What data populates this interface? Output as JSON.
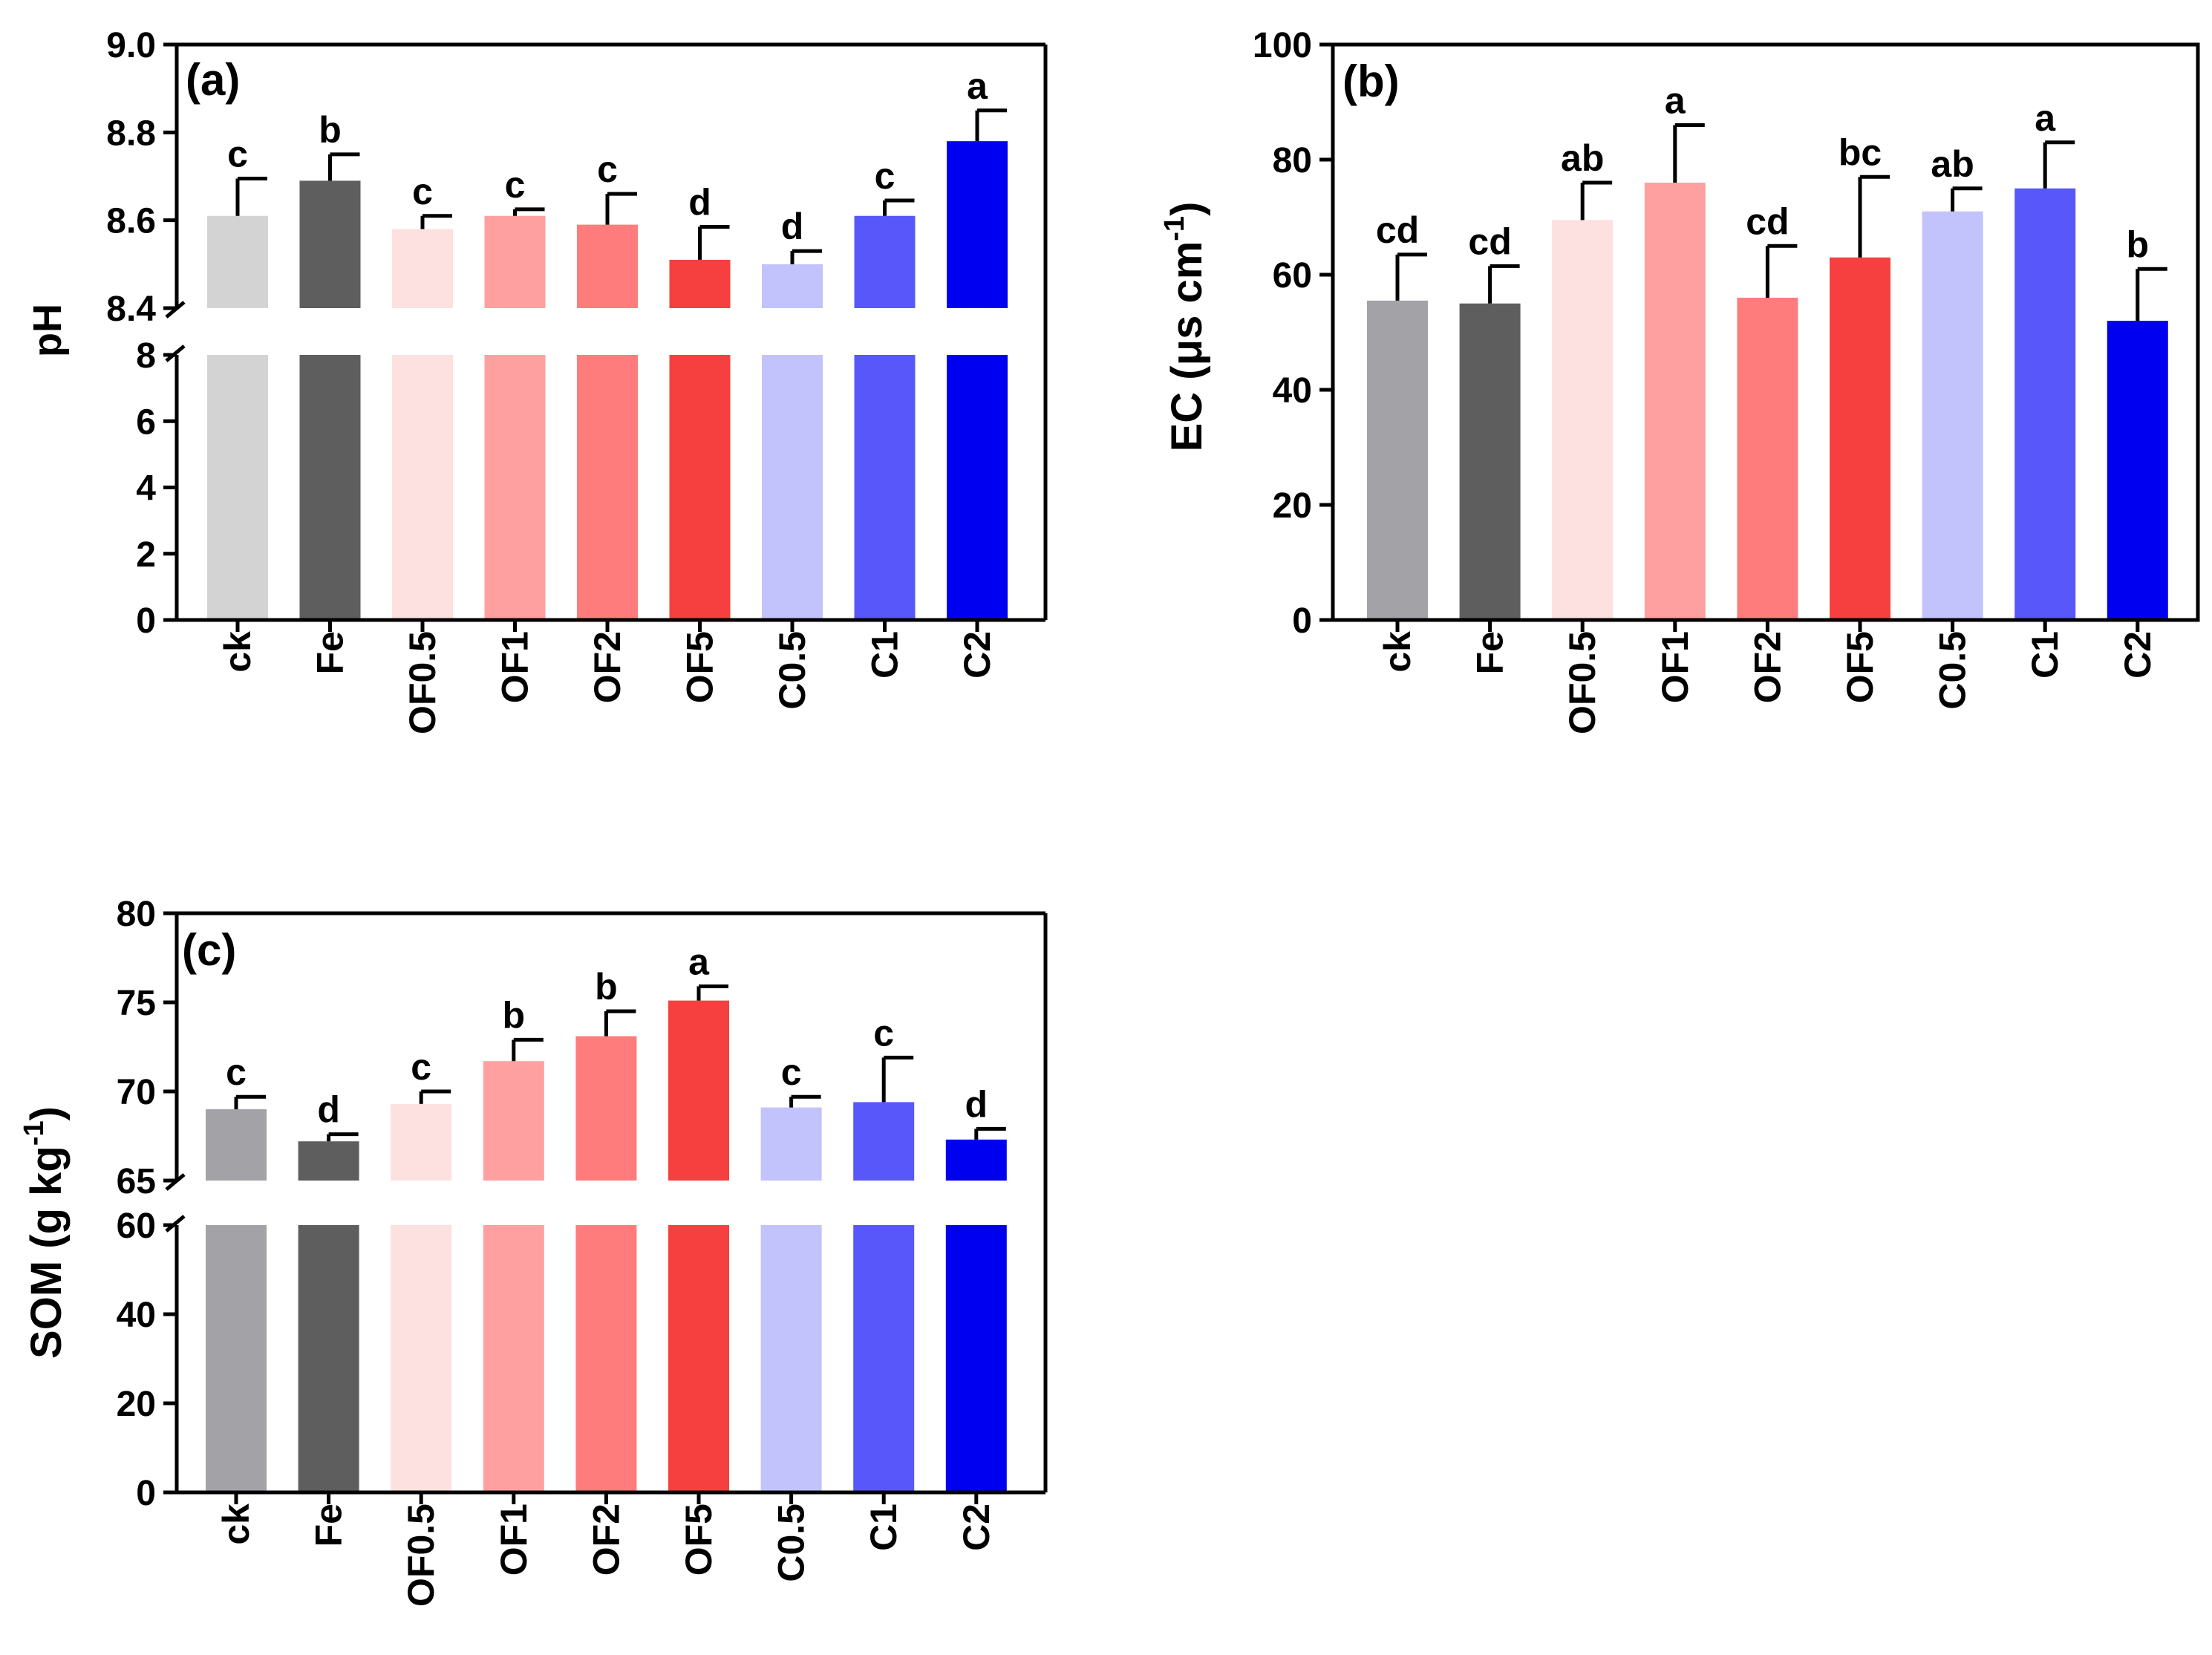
{
  "categories": [
    "ck",
    "Fe",
    "OF0.5",
    "OF1",
    "OF2",
    "OF5",
    "C0.5",
    "C1",
    "C2"
  ],
  "colors": {
    "a": [
      "#d3d3d3",
      "#5e5e5e",
      "#fde0e0",
      "#ffa0a0",
      "#ff7c7c",
      "#f64040",
      "#c2c2fc",
      "#5858fa",
      "#0000f0"
    ],
    "b": [
      "#a3a2a7",
      "#5e5e5e",
      "#fde0e0",
      "#ffa0a0",
      "#ff7c7c",
      "#f64040",
      "#c2c2fc",
      "#5858fa",
      "#0000f0"
    ],
    "c": [
      "#a3a2a7",
      "#5e5e5e",
      "#fde0e0",
      "#ffa0a0",
      "#ff7c7c",
      "#f64040",
      "#c2c2fc",
      "#5858fa",
      "#0000f0"
    ]
  },
  "chart_data": [
    {
      "id": "a",
      "type": "bar",
      "panel_label": "(a)",
      "ylabel": "pH",
      "broken_axis": true,
      "lower_range": [
        0,
        8
      ],
      "upper_range": [
        8.4,
        9.0
      ],
      "lower_ticks": [
        "0",
        "2",
        "4",
        "6",
        "8"
      ],
      "upper_ticks": [
        "8.4",
        "8.6",
        "8.8",
        "9.0"
      ],
      "categories": [
        "ck",
        "Fe",
        "OF0.5",
        "OF1",
        "OF2",
        "OF5",
        "C0.5",
        "C1",
        "C2"
      ],
      "values": [
        8.61,
        8.69,
        8.58,
        8.61,
        8.59,
        8.51,
        8.5,
        8.61,
        8.78
      ],
      "errors": [
        0.085,
        0.06,
        0.03,
        0.015,
        0.07,
        0.075,
        0.03,
        0.035,
        0.07
      ],
      "letters": [
        "c",
        "b",
        "c",
        "c",
        "c",
        "d",
        "d",
        "c",
        "a"
      ]
    },
    {
      "id": "b",
      "type": "bar",
      "panel_label": "(b)",
      "ylabel": "EC (μs cm",
      "ylabel_sup": "-1",
      "ylabel_close": ")",
      "broken_axis": false,
      "ylim": [
        0,
        100
      ],
      "ticks": [
        "0",
        "20",
        "40",
        "60",
        "80",
        "100"
      ],
      "categories": [
        "ck",
        "Fe",
        "OF0.5",
        "OF1",
        "OF2",
        "OF5",
        "C0.5",
        "C1",
        "C2"
      ],
      "values": [
        55.5,
        55.0,
        69.5,
        76.0,
        56.0,
        63.0,
        71.0,
        75.0,
        52.0
      ],
      "errors": [
        8.0,
        6.5,
        6.5,
        10.0,
        9.0,
        14.0,
        4.0,
        8.0,
        9.0
      ],
      "letters": [
        "cd",
        "cd",
        "ab",
        "a",
        "cd",
        "bc",
        "ab",
        "a",
        "b"
      ]
    },
    {
      "id": "c",
      "type": "bar",
      "panel_label": "(c)",
      "ylabel": "SOM (g kg",
      "ylabel_sup": "-1",
      "ylabel_close": ")",
      "broken_axis": true,
      "lower_range": [
        0,
        60
      ],
      "upper_range": [
        65,
        80
      ],
      "lower_ticks": [
        "0",
        "20",
        "40",
        "60"
      ],
      "upper_ticks": [
        "65",
        "70",
        "75",
        "80"
      ],
      "categories": [
        "ck",
        "Fe",
        "OF0.5",
        "OF1",
        "OF2",
        "OF5",
        "C0.5",
        "C1",
        "C2"
      ],
      "values": [
        69.0,
        67.2,
        69.3,
        71.7,
        73.1,
        75.1,
        69.1,
        69.4,
        67.3
      ],
      "errors": [
        0.7,
        0.4,
        0.7,
        1.2,
        1.4,
        0.8,
        0.6,
        2.5,
        0.6
      ],
      "letters": [
        "c",
        "d",
        "c",
        "b",
        "b",
        "a",
        "c",
        "c",
        "d"
      ]
    }
  ]
}
